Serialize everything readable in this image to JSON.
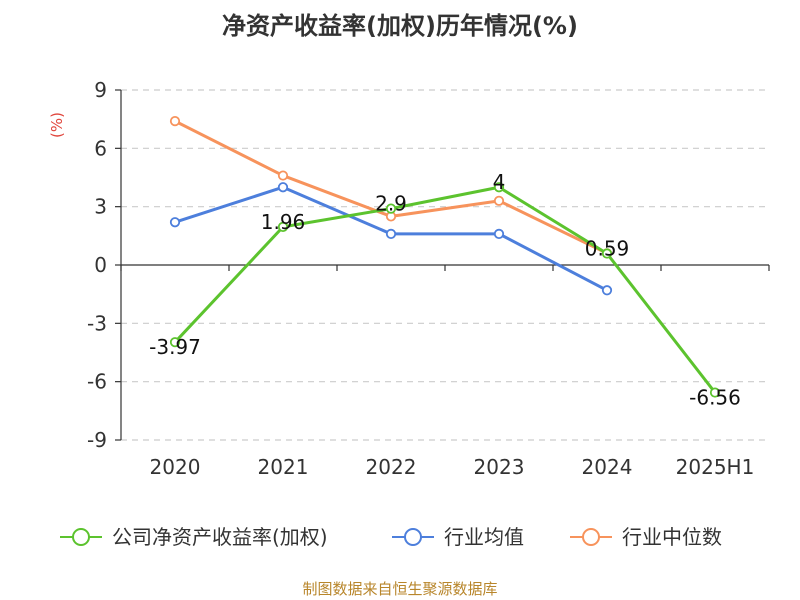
{
  "title": "净资产收益率(加权)历年情况(%)",
  "source": "制图数据来自恒生聚源数据库",
  "unit_label": "(%)",
  "colors": {
    "unit": "#e0453c",
    "axis": "#333333",
    "grid": "#cccccc"
  },
  "chart_data": {
    "type": "line",
    "title": "净资产收益率(加权)历年情况(%)",
    "categories": [
      "2020",
      "2021",
      "2022",
      "2023",
      "2024",
      "2025H1"
    ],
    "ylim": [
      -9,
      9
    ],
    "yticks": [
      9,
      6,
      3,
      0,
      -3,
      -6,
      -9
    ],
    "ytick_labels": [
      "9",
      "6",
      "3",
      "0",
      "-3",
      "-6",
      "-9"
    ],
    "grid": true,
    "legend_position": "bottom",
    "series": [
      {
        "name": "公司净资产收益率(加权)",
        "color": "#5cc32e",
        "values": [
          -3.97,
          1.96,
          2.9,
          4,
          0.59,
          -6.56
        ],
        "labels": [
          "-3.97",
          "1.96",
          "2.9",
          "4",
          "0.59",
          "-6.56"
        ]
      },
      {
        "name": "行业均值",
        "color": "#4d7fdc",
        "values": [
          2.2,
          4.0,
          1.6,
          1.6,
          -1.3,
          null
        ]
      },
      {
        "name": "行业中位数",
        "color": "#f7935c",
        "values": [
          7.4,
          4.6,
          2.5,
          3.3,
          0.6,
          null
        ]
      }
    ]
  }
}
